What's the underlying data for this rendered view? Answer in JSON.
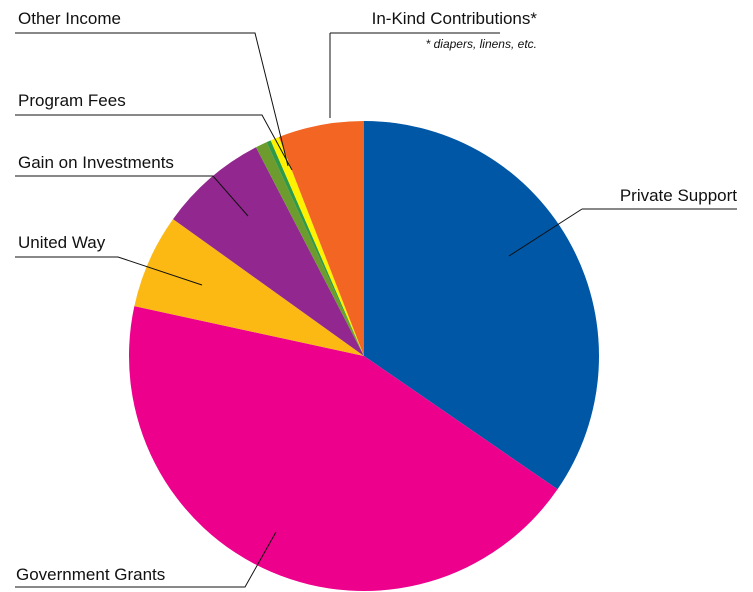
{
  "chart_data": {
    "type": "pie",
    "title": "",
    "legend": "none",
    "start_angle_deg": 0,
    "direction": "clockwise",
    "slices": [
      {
        "label": "Private Support",
        "value": 34.6,
        "color": "#0057A6"
      },
      {
        "label": "Government Grants",
        "value": 43.8,
        "color": "#EC008C"
      },
      {
        "label": "United Way",
        "value": 6.5,
        "color": "#FDB913"
      },
      {
        "label": "Gain on Investments",
        "value": 7.5,
        "color": "#92278F"
      },
      {
        "label": "Program Fees",
        "value": 0.8,
        "color": "#6E9B2E"
      },
      {
        "label": "Other Income",
        "value": 0.3,
        "color": "#2E9A47"
      },
      {
        "label": "In-Kind Contributions*",
        "value": 0.6,
        "color": "#FFF200",
        "note": "* diapers, linens, etc."
      },
      {
        "label": "",
        "value": 5.9,
        "color": "#F26522"
      }
    ]
  }
}
